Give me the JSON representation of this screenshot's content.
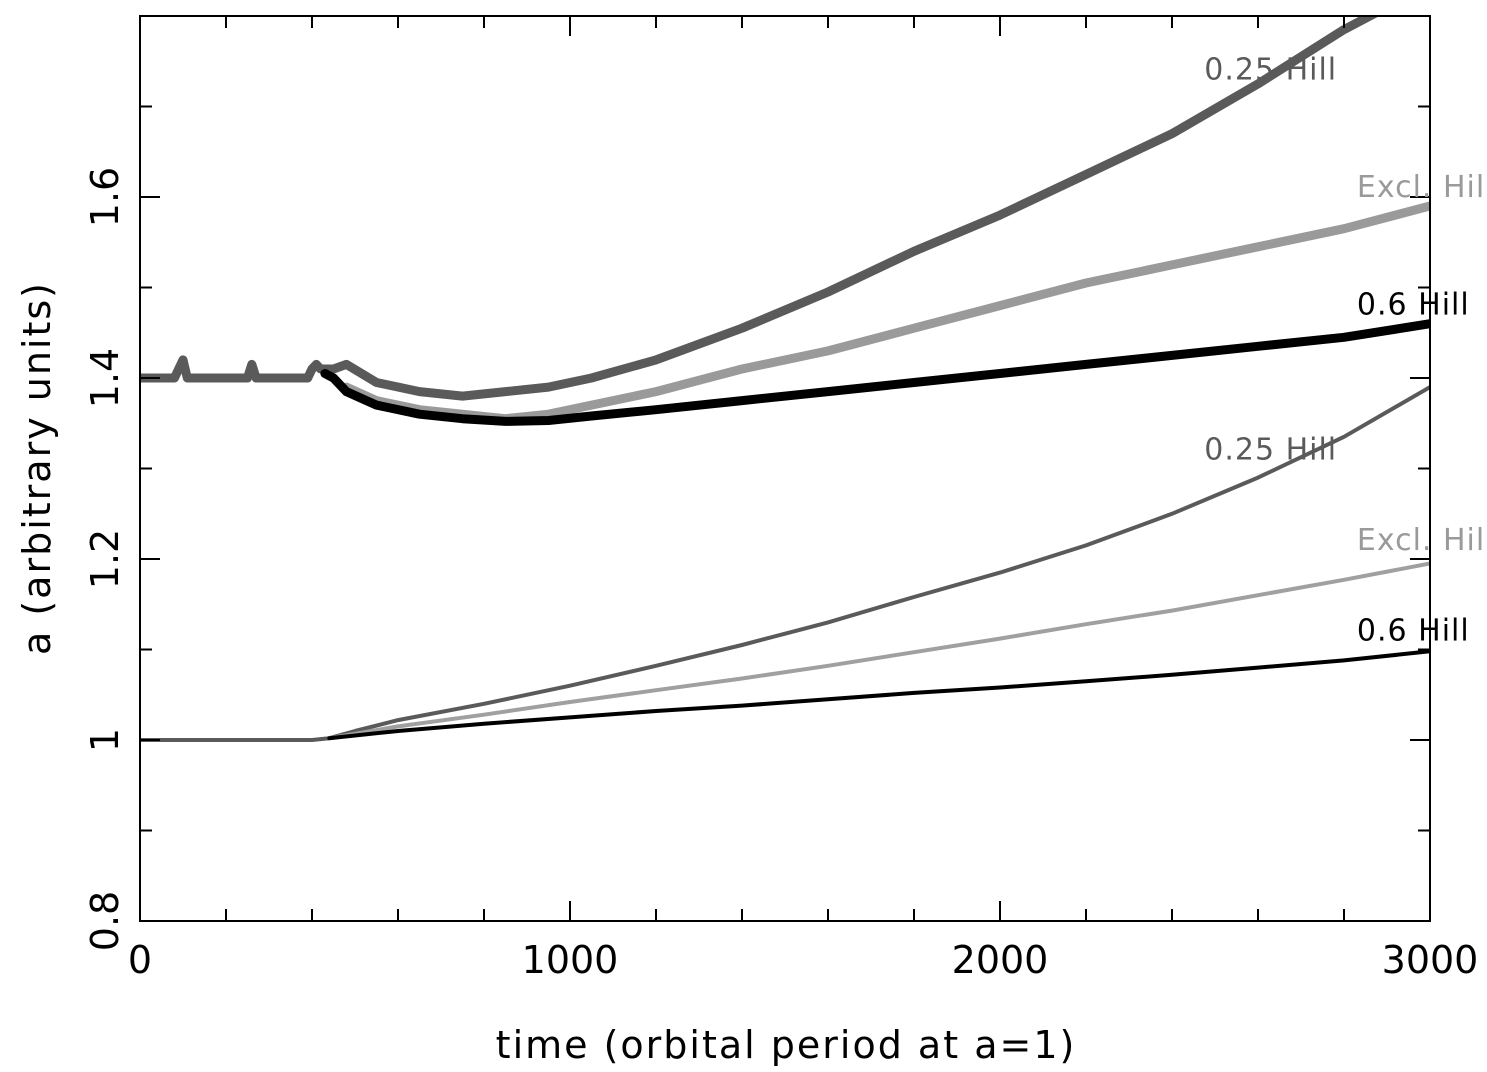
{
  "chart_data": {
    "type": "line",
    "title": "",
    "xlabel": "time (orbital period at a=1)",
    "ylabel": "a (arbitrary units)",
    "xlim": [
      0,
      3000
    ],
    "ylim": [
      0.8,
      1.8
    ],
    "x_ticks": [
      "0",
      "1000",
      "2000",
      "3000"
    ],
    "y_ticks": [
      "0.8",
      "1",
      "1.2",
      "1.4",
      "1.6"
    ],
    "x_tick_values": [
      0,
      1000,
      2000,
      3000
    ],
    "y_tick_values": [
      0.8,
      1.0,
      1.2,
      1.4,
      1.6
    ],
    "grid": false,
    "series": [
      {
        "name": "0.25 Hill",
        "group": "upper",
        "color": "#5a5a5a",
        "x": [
          0,
          80,
          90,
          100,
          110,
          250,
          260,
          270,
          390,
          400,
          410,
          420,
          450,
          480,
          550,
          650,
          750,
          850,
          950,
          1050,
          1200,
          1400,
          1600,
          1800,
          2000,
          2200,
          2400,
          2600,
          2800,
          2900
        ],
        "y": [
          1.4,
          1.4,
          1.41,
          1.42,
          1.4,
          1.4,
          1.415,
          1.4,
          1.4,
          1.41,
          1.415,
          1.41,
          1.41,
          1.415,
          1.395,
          1.385,
          1.38,
          1.385,
          1.39,
          1.4,
          1.42,
          1.455,
          1.495,
          1.54,
          1.58,
          1.625,
          1.67,
          1.725,
          1.785,
          1.81
        ]
      },
      {
        "name": "Excl. Hill",
        "group": "upper",
        "color": "#9a9a9a",
        "x": [
          480,
          550,
          650,
          750,
          850,
          950,
          1050,
          1200,
          1400,
          1600,
          1800,
          2000,
          2200,
          2400,
          2600,
          2800,
          3000
        ],
        "y": [
          1.39,
          1.375,
          1.365,
          1.36,
          1.355,
          1.36,
          1.37,
          1.385,
          1.41,
          1.43,
          1.455,
          1.48,
          1.505,
          1.525,
          1.545,
          1.565,
          1.59
        ]
      },
      {
        "name": "0.6 Hill",
        "group": "upper",
        "color": "#000000",
        "x": [
          430,
          450,
          480,
          550,
          650,
          750,
          850,
          950,
          1050,
          1200,
          1400,
          1600,
          1800,
          2000,
          2200,
          2400,
          2600,
          2800,
          3000
        ],
        "y": [
          1.405,
          1.4,
          1.385,
          1.37,
          1.36,
          1.355,
          1.352,
          1.353,
          1.358,
          1.365,
          1.375,
          1.385,
          1.395,
          1.405,
          1.415,
          1.425,
          1.435,
          1.445,
          1.46
        ]
      },
      {
        "name": "0.25 Hill",
        "group": "lower",
        "color": "#5a5a5a",
        "x": [
          0,
          400,
          440,
          500,
          600,
          800,
          1000,
          1200,
          1400,
          1600,
          1800,
          2000,
          2200,
          2400,
          2600,
          2800,
          3000
        ],
        "y": [
          1.0,
          1.0,
          1.002,
          1.01,
          1.022,
          1.04,
          1.06,
          1.082,
          1.105,
          1.13,
          1.158,
          1.185,
          1.215,
          1.25,
          1.29,
          1.335,
          1.39
        ]
      },
      {
        "name": "Excl. Hill",
        "group": "lower",
        "color": "#a0a0a0",
        "x": [
          440,
          600,
          800,
          1000,
          1200,
          1400,
          1600,
          1800,
          2000,
          2200,
          2400,
          2600,
          2800,
          3000
        ],
        "y": [
          1.002,
          1.015,
          1.028,
          1.042,
          1.055,
          1.068,
          1.082,
          1.097,
          1.112,
          1.128,
          1.143,
          1.16,
          1.177,
          1.195
        ]
      },
      {
        "name": "0.6 Hill",
        "group": "lower",
        "color": "#000000",
        "x": [
          440,
          600,
          800,
          1000,
          1200,
          1400,
          1600,
          1800,
          2000,
          2200,
          2400,
          2600,
          2800,
          3000
        ],
        "y": [
          1.002,
          1.01,
          1.018,
          1.025,
          1.032,
          1.038,
          1.045,
          1.052,
          1.058,
          1.065,
          1.072,
          1.08,
          1.088,
          1.098
        ]
      }
    ],
    "labels": [
      {
        "text": "0.25 Hill",
        "color": "#5a5a5a",
        "x": 2475,
        "y": 1.73
      },
      {
        "text": "Excl. Hill",
        "color": "#9a9a9a",
        "x": 2830,
        "y": 1.6
      },
      {
        "text": "0.6 Hill",
        "color": "#000000",
        "x": 2830,
        "y": 1.47
      },
      {
        "text": "0.25 Hill",
        "color": "#5a5a5a",
        "x": 2475,
        "y": 1.31
      },
      {
        "text": "Excl. Hill",
        "color": "#9a9a9a",
        "x": 2830,
        "y": 1.21
      },
      {
        "text": "0.6 Hill",
        "color": "#000000",
        "x": 2830,
        "y": 1.11
      }
    ]
  }
}
